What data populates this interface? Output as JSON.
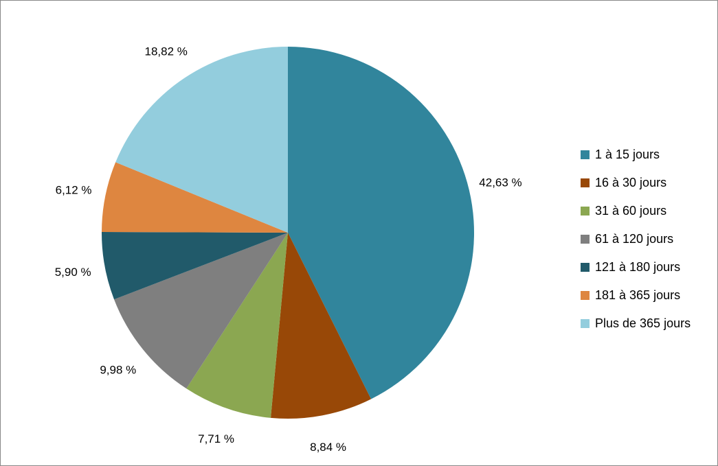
{
  "chart_data": {
    "type": "pie",
    "categories": [
      "1 à 15 jours",
      "16 à 30 jours",
      "31 à 60 jours",
      "61 à 120 jours",
      "121 à 180 jours",
      "181 à 365 jours",
      "Plus de 365 jours"
    ],
    "values": [
      42.63,
      8.84,
      7.71,
      9.98,
      5.9,
      6.12,
      18.82
    ],
    "data_labels": [
      "42,63 %",
      "8,84 %",
      "7,71 %",
      "9,98 %",
      "5,90 %",
      "6,12 %",
      "18,82 %"
    ],
    "colors": [
      "#31859C",
      "#984807",
      "#8BA751",
      "#7F7F7F",
      "#215A6A",
      "#DE8640",
      "#93CDDD"
    ],
    "start_angle": "top (12 o'clock), clockwise",
    "legend_position": "right"
  }
}
